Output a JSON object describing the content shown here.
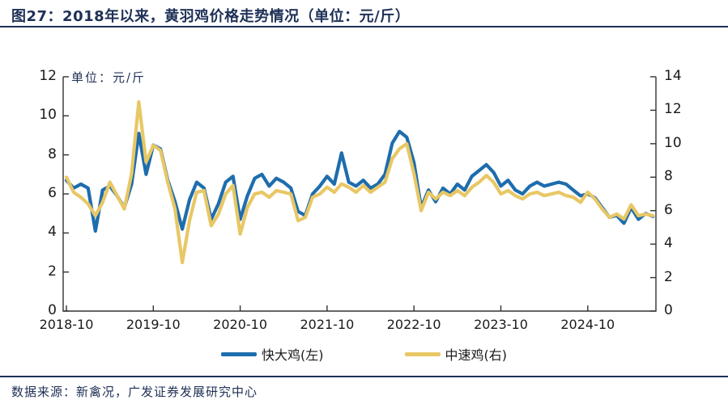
{
  "header": {
    "title": "图27：2018年以来，黄羽鸡价格走势情况（单位：元/斤）"
  },
  "chart": {
    "unit_label": "单位：元/斤",
    "left_axis": {
      "min": 0,
      "max": 12,
      "ticks": [
        0,
        2,
        4,
        6,
        8,
        10,
        12
      ]
    },
    "right_axis": {
      "min": 0,
      "max": 14,
      "ticks": [
        0,
        2,
        4,
        6,
        8,
        10,
        12,
        14
      ]
    },
    "x_axis": {
      "tick_labels": [
        "2018-10",
        "2019-10",
        "2020-10",
        "2021-10",
        "2022-10",
        "2023-10",
        "2024-10"
      ]
    },
    "legend": [
      {
        "label": "快大鸡(左)",
        "color": "#1e6dad"
      },
      {
        "label": "中速鸡(右)",
        "color": "#e8c765"
      }
    ],
    "colors": {
      "accent_navy": "#1e3056",
      "axis": "#333333"
    }
  },
  "chart_data": {
    "type": "line",
    "title": "2018年以来，黄羽鸡价格走势情况（单位：元/斤）",
    "xlabel": "",
    "ylabel_left": "元/斤",
    "ylabel_right": "元/斤",
    "left_ylim": [
      0,
      12
    ],
    "right_ylim": [
      0,
      14
    ],
    "grid": false,
    "legend_position": "bottom",
    "x": [
      "2018-10",
      "2018-11",
      "2018-12",
      "2019-01",
      "2019-02",
      "2019-03",
      "2019-04",
      "2019-05",
      "2019-06",
      "2019-07",
      "2019-08",
      "2019-09",
      "2019-10",
      "2019-11",
      "2019-12",
      "2020-01",
      "2020-02",
      "2020-03",
      "2020-04",
      "2020-05",
      "2020-06",
      "2020-07",
      "2020-08",
      "2020-09",
      "2020-10",
      "2020-11",
      "2020-12",
      "2021-01",
      "2021-02",
      "2021-03",
      "2021-04",
      "2021-05",
      "2021-06",
      "2021-07",
      "2021-08",
      "2021-09",
      "2021-10",
      "2021-11",
      "2021-12",
      "2022-01",
      "2022-02",
      "2022-03",
      "2022-04",
      "2022-05",
      "2022-06",
      "2022-07",
      "2022-08",
      "2022-09",
      "2022-10",
      "2022-11",
      "2022-12",
      "2023-01",
      "2023-02",
      "2023-03",
      "2023-04",
      "2023-05",
      "2023-06",
      "2023-07",
      "2023-08",
      "2023-09",
      "2023-10",
      "2023-11",
      "2023-12",
      "2024-01",
      "2024-02",
      "2024-03",
      "2024-04",
      "2024-05",
      "2024-06",
      "2024-07",
      "2024-08",
      "2024-09",
      "2024-10",
      "2024-11",
      "2024-12",
      "2025-01",
      "2025-02",
      "2025-03",
      "2025-04",
      "2025-05",
      "2025-06",
      "2025-07"
    ],
    "series": [
      {
        "name": "快大鸡(左)",
        "axis": "left",
        "color": "#1e6dad",
        "values": [
          6.7,
          6.3,
          6.5,
          6.3,
          4.1,
          6.2,
          6.4,
          5.9,
          5.3,
          6.5,
          9.1,
          7.0,
          8.5,
          8.3,
          6.7,
          5.6,
          4.2,
          5.7,
          6.6,
          6.3,
          4.7,
          5.5,
          6.6,
          6.9,
          4.7,
          5.9,
          6.8,
          7.0,
          6.4,
          6.8,
          6.6,
          6.3,
          5.1,
          4.9,
          6.0,
          6.4,
          6.9,
          6.5,
          8.1,
          6.6,
          6.4,
          6.7,
          6.3,
          6.5,
          7.0,
          8.6,
          9.2,
          8.9,
          7.6,
          5.3,
          6.2,
          5.6,
          6.3,
          6.0,
          6.5,
          6.2,
          6.9,
          7.2,
          7.5,
          7.1,
          6.4,
          6.7,
          6.2,
          6.0,
          6.4,
          6.6,
          6.4,
          6.5,
          6.6,
          6.5,
          6.2,
          5.9,
          6.0,
          5.8,
          5.3,
          4.8,
          4.9,
          4.5,
          5.3,
          4.7,
          5.0,
          4.85
        ]
      },
      {
        "name": "中速鸡(右)",
        "axis": "right",
        "color": "#e8c765",
        "values": [
          8.0,
          7.1,
          6.8,
          6.4,
          5.7,
          6.5,
          7.7,
          6.9,
          6.1,
          8.2,
          12.5,
          8.9,
          9.9,
          9.6,
          7.7,
          6.1,
          2.9,
          5.4,
          7.1,
          7.2,
          5.1,
          5.8,
          7.0,
          7.5,
          4.6,
          6.2,
          7.0,
          7.1,
          6.8,
          7.2,
          7.1,
          7.0,
          5.4,
          5.6,
          6.8,
          7.0,
          7.4,
          7.1,
          7.6,
          7.4,
          7.1,
          7.5,
          7.1,
          7.4,
          7.7,
          9.1,
          9.7,
          10.0,
          8.2,
          6.0,
          7.1,
          6.7,
          7.1,
          6.9,
          7.2,
          6.9,
          7.4,
          7.7,
          8.1,
          7.7,
          7.0,
          7.2,
          6.9,
          6.7,
          7.0,
          7.1,
          6.9,
          7.0,
          7.1,
          6.9,
          6.8,
          6.5,
          7.1,
          6.7,
          6.1,
          5.6,
          5.8,
          5.5,
          6.35,
          5.7,
          5.8,
          5.7
        ]
      }
    ]
  },
  "footer": {
    "source": "数据来源：新禽况，广发证券发展研究中心"
  }
}
